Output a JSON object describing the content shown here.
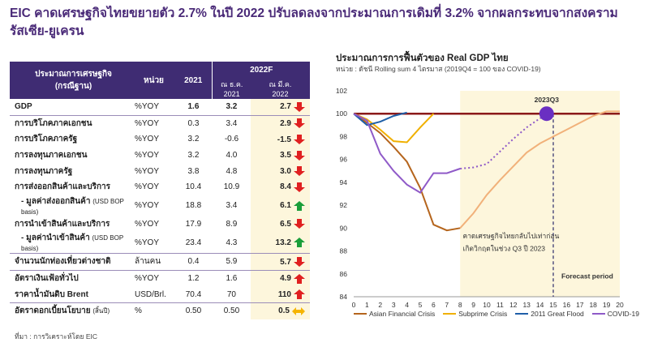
{
  "headline": "EIC คาดเศรษฐกิจไทยขยายตัว 2.7% ในปี 2022 ปรับลดลงจากประมาณการเดิมที่ 3.2% จากผลกระทบจากสงครามรัสเซีย-ยูเครน",
  "table": {
    "header": {
      "indicator": "ประมาณการเศรษฐกิจ",
      "indicator_sub": "(กรณีฐาน)",
      "unit": "หน่วย",
      "y2021": "2021",
      "y2022f": "2022F",
      "dec_label": "ณ ธ.ค.",
      "dec_year": "2021",
      "mar_label": "ณ มี.ค.",
      "mar_year": "2022"
    },
    "rows": [
      {
        "name": "GDP",
        "note": "",
        "unit": "%YOY",
        "v2021": "1.6",
        "dec": "3.2",
        "mar": "2.7",
        "arrow": "down"
      },
      {
        "name": "การบริโภคภาคเอกชน",
        "note": "",
        "unit": "%YOY",
        "v2021": "0.3",
        "dec": "3.4",
        "mar": "2.9",
        "arrow": "down"
      },
      {
        "name": "การบริโภคภาครัฐ",
        "note": "",
        "unit": "%YOY",
        "v2021": "3.2",
        "dec": "-0.6",
        "mar": "-1.5",
        "arrow": "down"
      },
      {
        "name": "การลงทุนภาคเอกชน",
        "note": "",
        "unit": "%YOY",
        "v2021": "3.2",
        "dec": "4.0",
        "mar": "3.5",
        "arrow": "down"
      },
      {
        "name": "การลงทุนภาครัฐ",
        "note": "",
        "unit": "%YOY",
        "v2021": "3.8",
        "dec": "4.8",
        "mar": "3.0",
        "arrow": "down"
      },
      {
        "name": "การส่งออกสินค้าและบริการ",
        "note": "",
        "unit": "%YOY",
        "v2021": "10.4",
        "dec": "10.9",
        "mar": "8.4",
        "arrow": "down"
      },
      {
        "name": "- มูลค่าส่งออกสินค้า",
        "note": "(USD BOP basis)",
        "unit": "%YOY",
        "v2021": "18.8",
        "dec": "3.4",
        "mar": "6.1",
        "arrow": "up"
      },
      {
        "name": "การนำเข้าสินค้าและบริการ",
        "note": "",
        "unit": "%YOY",
        "v2021": "17.9",
        "dec": "8.9",
        "mar": "6.5",
        "arrow": "down"
      },
      {
        "name": "- มูลค่านำเข้าสินค้า",
        "note": "(USD BOP basis)",
        "unit": "%YOY",
        "v2021": "23.4",
        "dec": "4.3",
        "mar": "13.2",
        "arrow": "up"
      },
      {
        "name": "จำนวนนักท่องเที่ยวต่างชาติ",
        "note": "",
        "unit": "ล้านคน",
        "v2021": "0.4",
        "dec": "5.9",
        "mar": "5.7",
        "arrow": "down"
      },
      {
        "name": "อัตราเงินเฟ้อทั่วไป",
        "note": "",
        "unit": "%YOY",
        "v2021": "1.2",
        "dec": "1.6",
        "mar": "4.9",
        "arrow": "up-red"
      },
      {
        "name": "ราคาน้ำมันดิบ Brent",
        "note": "",
        "unit": "USD/Brl.",
        "v2021": "70.4",
        "dec": "70",
        "mar": "110",
        "arrow": "up-red"
      },
      {
        "name": "อัตราดอกเบี้ยนโยบาย",
        "note": "(สิ้นปี)",
        "unit": "%",
        "v2021": "0.50",
        "dec": "0.50",
        "mar": "0.5",
        "arrow": "both"
      }
    ]
  },
  "source": "ที่มา : การวิเคราะห์โดย EIC",
  "colors": {
    "header_bg": "#3f2c73",
    "highlight_col": "#fdf6dc",
    "arrow_down": "#e02020",
    "arrow_up": "#1a9e3a",
    "arrow_both": "#f5b400"
  },
  "chart_data": {
    "type": "line",
    "title": "ประมาณการการฟื้นตัวของ Real GDP ไทย",
    "subtitle": "หน่วย : ดัชนี Rolling sum 4 ไตรมาส (2019Q4 = 100 ของ COVID-19)",
    "x": [
      0,
      1,
      2,
      3,
      4,
      5,
      6,
      7,
      8,
      9,
      10,
      11,
      12,
      13,
      14,
      15,
      16,
      17,
      18,
      19,
      20
    ],
    "xlim": [
      0,
      20
    ],
    "ylim": [
      84,
      102
    ],
    "yticks": [
      84,
      86,
      88,
      90,
      92,
      94,
      96,
      98,
      100,
      102
    ],
    "series": [
      {
        "name": "Asian Financial Crisis",
        "color": "#b5651d",
        "dash": "",
        "points": [
          [
            0,
            100
          ],
          [
            1,
            99.2
          ],
          [
            2,
            98.3
          ],
          [
            3,
            97.1
          ],
          [
            4,
            95.8
          ],
          [
            5,
            93.5
          ],
          [
            6,
            90.3
          ],
          [
            7,
            89.8
          ],
          [
            8,
            90.0
          ]
        ]
      },
      {
        "name": "Subprime Crisis",
        "color": "#f0b000",
        "dash": "",
        "points": [
          [
            0,
            100
          ],
          [
            1,
            99.5
          ],
          [
            2,
            98.6
          ],
          [
            3,
            97.6
          ],
          [
            4,
            97.5
          ],
          [
            5,
            98.8
          ],
          [
            6,
            100
          ]
        ]
      },
      {
        "name": "2011 Great Flood",
        "color": "#1f5fa8",
        "dash": "",
        "points": [
          [
            0,
            100
          ],
          [
            1,
            99.0
          ],
          [
            2,
            99.3
          ],
          [
            3,
            99.8
          ],
          [
            4,
            100.1
          ]
        ]
      },
      {
        "name": "COVID-19",
        "color": "#8f5ac8",
        "dash": "",
        "points": [
          [
            0,
            100
          ],
          [
            1,
            99.4
          ],
          [
            2,
            96.5
          ],
          [
            3,
            95.0
          ],
          [
            4,
            93.8
          ],
          [
            5,
            93.1
          ],
          [
            6,
            94.8
          ],
          [
            7,
            94.8
          ],
          [
            8,
            95.2
          ]
        ]
      },
      {
        "name": "COVID-19 forecast",
        "color": "#8f5ac8",
        "dash": "2,3",
        "points": [
          [
            8,
            95.2
          ],
          [
            9,
            95.3
          ],
          [
            10,
            95.6
          ],
          [
            11,
            96.7
          ],
          [
            12,
            97.8
          ],
          [
            13,
            98.8
          ],
          [
            14,
            99.6
          ],
          [
            15,
            100
          ]
        ]
      },
      {
        "name": "Asian Financial Crisis (continued)",
        "color": "#f1b17a",
        "dash": "",
        "points": [
          [
            8,
            90.0
          ],
          [
            9,
            91.3
          ],
          [
            10,
            92.9
          ],
          [
            11,
            94.2
          ],
          [
            12,
            95.4
          ],
          [
            13,
            96.6
          ],
          [
            14,
            97.4
          ],
          [
            15,
            98.0
          ],
          [
            16,
            98.6
          ],
          [
            17,
            99.2
          ],
          [
            18,
            99.8
          ],
          [
            19,
            100.2
          ],
          [
            20,
            100.2
          ]
        ]
      }
    ],
    "reference_line": {
      "y": 100,
      "color": "#8b1a1a"
    },
    "forecast_region_start": 8,
    "forecast_line_x": 15,
    "forecast_label": "Forecast period",
    "marker": {
      "x": 14.5,
      "y": 100,
      "label": "2023Q3",
      "color": "#6a2fc2"
    },
    "annotation": {
      "text_line1": "คาดเศรษฐกิจไทยกลับไปเท่าก่อน",
      "text_line2": "เกิดวิกฤตในช่วง Q3 ปี 2023",
      "color": "#e03030"
    },
    "legend": [
      "Asian Financial Crisis",
      "Subprime Crisis",
      "2011 Great Flood",
      "COVID-19"
    ],
    "legend_position": "bottom",
    "grid": false
  }
}
